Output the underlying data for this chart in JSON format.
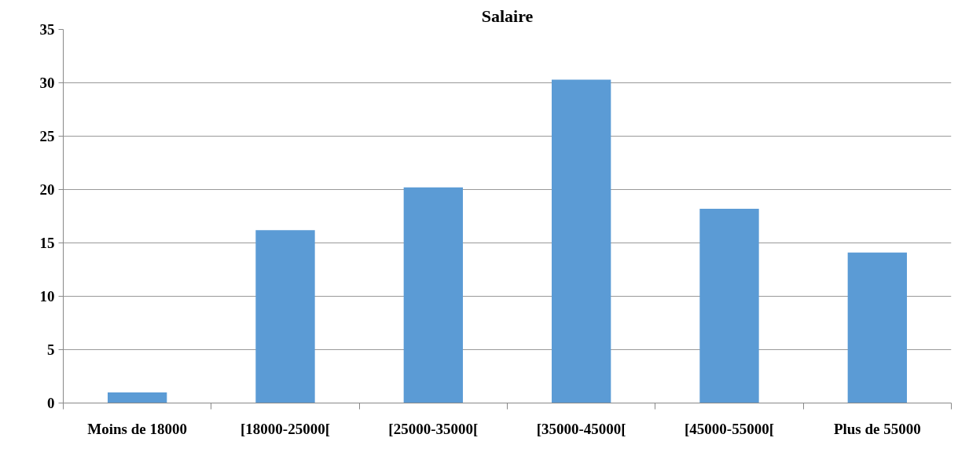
{
  "chart_data": {
    "type": "bar",
    "title": "Salaire",
    "categories": [
      "Moins de 18000",
      "[18000-25000[",
      "[25000-35000[",
      "[35000-45000[",
      "[45000-55000[",
      "Plus de 55000"
    ],
    "values": [
      1,
      16.2,
      20.2,
      30.3,
      18.2,
      14.1
    ],
    "color": "#5b9bd5",
    "ylim": [
      0,
      35
    ],
    "yticks": [
      0,
      5,
      10,
      15,
      20,
      25,
      30,
      35
    ],
    "grid": "y"
  }
}
